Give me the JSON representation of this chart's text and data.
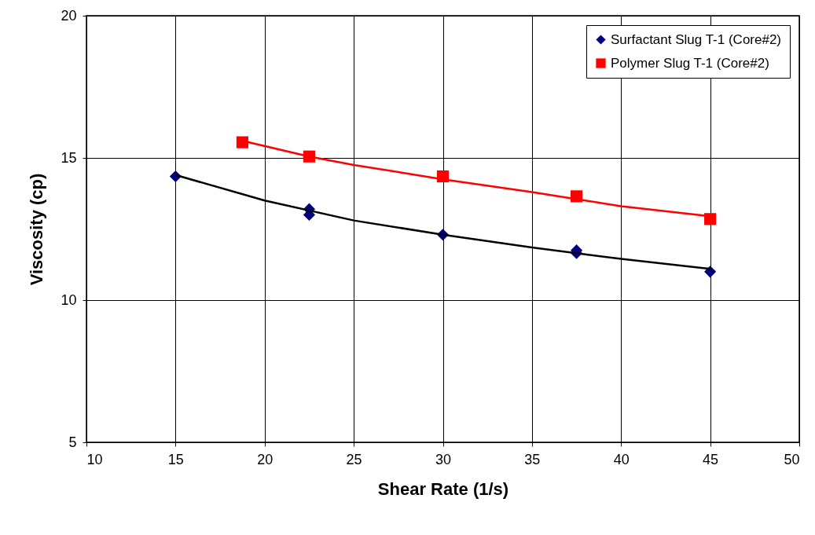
{
  "chart_data": {
    "type": "scatter",
    "xlabel": "Shear Rate (1/s)",
    "ylabel": "Viscosity (cp)",
    "xlim": [
      10,
      50
    ],
    "xticks": [
      10,
      15,
      20,
      25,
      30,
      35,
      40,
      45,
      50
    ],
    "ylim": [
      5,
      20
    ],
    "yticks": [
      5,
      10,
      15,
      20
    ],
    "grid": true,
    "legend": "top right",
    "series": [
      {
        "name": "Surfactant Slug T-1 (Core#2)",
        "marker": "diamond",
        "color": "#000080",
        "x": [
          15,
          22.5,
          22.5,
          30,
          37.5,
          37.5,
          45
        ],
        "values": [
          14.35,
          13.2,
          13.0,
          12.3,
          11.75,
          11.65,
          11.0
        ]
      },
      {
        "name": "Polymer Slug T-1 (Core#2)",
        "marker": "square",
        "color": "#ff0000",
        "x": [
          18.75,
          22.5,
          30,
          37.5,
          45
        ],
        "values": [
          15.55,
          15.05,
          14.35,
          13.65,
          12.85
        ]
      },
      {
        "type": "line",
        "marker": "none",
        "color": "#000000",
        "x": [
          15,
          20,
          25,
          30,
          35,
          40,
          45
        ],
        "values": [
          14.4,
          13.5,
          12.8,
          12.3,
          11.85,
          11.45,
          11.1
        ]
      },
      {
        "type": "line",
        "marker": "none",
        "color": "#ff0000",
        "x": [
          18.75,
          22.5,
          25,
          30,
          35,
          40,
          45
        ],
        "values": [
          15.6,
          15.05,
          14.75,
          14.25,
          13.8,
          13.3,
          12.95
        ]
      }
    ]
  }
}
